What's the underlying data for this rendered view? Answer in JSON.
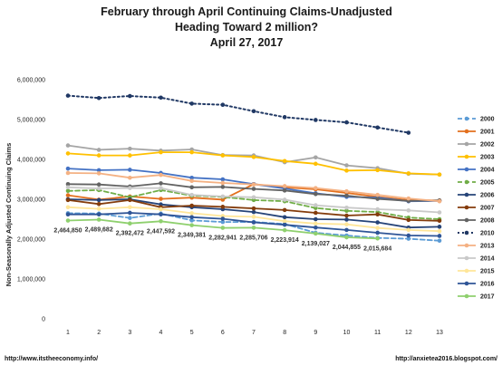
{
  "chart_data": {
    "type": "line",
    "title": [
      "February through April Continuing Claims-Unadjusted",
      "Heading Toward 2 million?",
      "April 27, 2017"
    ],
    "ylabel": "Non-Seasonally Adjusted Continuing Claims",
    "xlabel": "",
    "x": [
      1,
      2,
      3,
      4,
      5,
      6,
      7,
      8,
      9,
      10,
      11,
      12,
      13
    ],
    "ylim": [
      0,
      6000000
    ],
    "yticks": [
      0,
      1000000,
      2000000,
      3000000,
      4000000,
      5000000,
      6000000
    ],
    "ytick_labels": [
      "0",
      "1,000,000",
      "2,000,000",
      "3,000,000",
      "4,000,000",
      "5,000,000",
      "6,000,000"
    ],
    "grid": false,
    "legend_position": "right",
    "series": [
      {
        "name": "2000",
        "color": "#5b9bd5",
        "dash": "dashed",
        "marker": "circle",
        "values": [
          2650000,
          2640000,
          2530000,
          2640000,
          2470000,
          2430000,
          2430000,
          2380000,
          2160000,
          2090000,
          2030000,
          2010000,
          1960000
        ]
      },
      {
        "name": "2001",
        "color": "#e3701e",
        "dash": "solid",
        "marker": "circle",
        "values": [
          3100000,
          2990000,
          3070000,
          3010000,
          3040000,
          2990000,
          3380000,
          3300000,
          3250000,
          3160000,
          3060000,
          2980000,
          2970000
        ]
      },
      {
        "name": "2002",
        "color": "#a5a5a5",
        "dash": "solid",
        "marker": "circle",
        "values": [
          4350000,
          4240000,
          4270000,
          4220000,
          4250000,
          4110000,
          4100000,
          3930000,
          4050000,
          3850000,
          3780000,
          3640000,
          3620000
        ]
      },
      {
        "name": "2003",
        "color": "#ffc000",
        "dash": "solid",
        "marker": "circle",
        "values": [
          4150000,
          4100000,
          4100000,
          4180000,
          4180000,
          4100000,
          4060000,
          3960000,
          3890000,
          3720000,
          3730000,
          3650000,
          3620000
        ]
      },
      {
        "name": "2004",
        "color": "#4472c4",
        "dash": "solid",
        "marker": "circle",
        "values": [
          3770000,
          3730000,
          3740000,
          3660000,
          3540000,
          3500000,
          3380000,
          3270000,
          3150000,
          3060000,
          3040000,
          2950000,
          2960000
        ]
      },
      {
        "name": "2005",
        "color": "#70ad47",
        "dash": "dashed",
        "marker": "circle",
        "values": [
          3210000,
          3230000,
          3050000,
          3230000,
          3090000,
          3060000,
          2980000,
          2950000,
          2780000,
          2710000,
          2680000,
          2540000,
          2500000
        ]
      },
      {
        "name": "2006",
        "color": "#264478",
        "dash": "solid",
        "marker": "circle",
        "values": [
          3000000,
          2980000,
          3000000,
          2870000,
          2800000,
          2750000,
          2680000,
          2550000,
          2500000,
          2490000,
          2420000,
          2290000,
          2310000
        ]
      },
      {
        "name": "2007",
        "color": "#843c0c",
        "dash": "solid",
        "marker": "circle",
        "values": [
          2980000,
          2880000,
          2980000,
          2800000,
          2840000,
          2810000,
          2770000,
          2730000,
          2660000,
          2590000,
          2620000,
          2480000,
          2460000
        ]
      },
      {
        "name": "2008",
        "color": "#636363",
        "dash": "solid",
        "marker": "circle",
        "values": [
          3380000,
          3370000,
          3320000,
          3400000,
          3300000,
          3310000,
          3260000,
          3220000,
          3130000,
          3090000,
          3010000,
          2960000,
          2970000
        ]
      },
      {
        "name": "2010",
        "color": "#203864",
        "dash": "dotted",
        "marker": "circle",
        "values": [
          5600000,
          5540000,
          5590000,
          5550000,
          5400000,
          5370000,
          5210000,
          5060000,
          4990000,
          4930000,
          4800000,
          4670000,
          null
        ]
      },
      {
        "name": "2013",
        "color": "#f4b183",
        "dash": "solid",
        "marker": "circle",
        "values": [
          3660000,
          3650000,
          3540000,
          3610000,
          3460000,
          3410000,
          3370000,
          3330000,
          3280000,
          3200000,
          3110000,
          3020000,
          2950000
        ]
      },
      {
        "name": "2014",
        "color": "#c9c9c9",
        "dash": "solid",
        "marker": "circle",
        "values": [
          3300000,
          3270000,
          3280000,
          3280000,
          3110000,
          3070000,
          3050000,
          2990000,
          2850000,
          2790000,
          2750000,
          2720000,
          2670000
        ]
      },
      {
        "name": "2015",
        "color": "#ffe699",
        "dash": "solid",
        "marker": "circle",
        "values": [
          2800000,
          2760000,
          2800000,
          2750000,
          2650000,
          2580000,
          2560000,
          2450000,
          2390000,
          2370000,
          2280000,
          2230000,
          2200000
        ]
      },
      {
        "name": "2016",
        "color": "#2f5597",
        "dash": "solid",
        "marker": "circle",
        "values": [
          2620000,
          2620000,
          2660000,
          2620000,
          2550000,
          2510000,
          2420000,
          2360000,
          2290000,
          2230000,
          2160000,
          2090000,
          2080000
        ]
      },
      {
        "name": "2017",
        "color": "#8fd06e",
        "dash": "solid",
        "marker": "circle",
        "values": [
          2464850,
          2489682,
          2392472,
          2447592,
          2349381,
          2282941,
          2285706,
          2223914,
          2139027,
          2044855,
          2015684,
          null,
          null
        ]
      }
    ],
    "data_labels": [
      {
        "x": 1,
        "text": "2,464,850"
      },
      {
        "x": 2,
        "text": "2,489,682"
      },
      {
        "x": 3,
        "text": "2,392,472"
      },
      {
        "x": 4,
        "text": "2,447,592"
      },
      {
        "x": 5,
        "text": "2,349,381"
      },
      {
        "x": 6,
        "text": "2,282,941"
      },
      {
        "x": 7,
        "text": "2,285,706"
      },
      {
        "x": 8,
        "text": "2,223,914"
      },
      {
        "x": 9,
        "text": "2,139,027"
      },
      {
        "x": 10,
        "text": "2,044,855"
      },
      {
        "x": 11,
        "text": "2,015,684"
      }
    ]
  },
  "footer": {
    "left": "http://www.itstheeconomy.info/",
    "right": "http://anxietea2016.blogspot.com/"
  }
}
